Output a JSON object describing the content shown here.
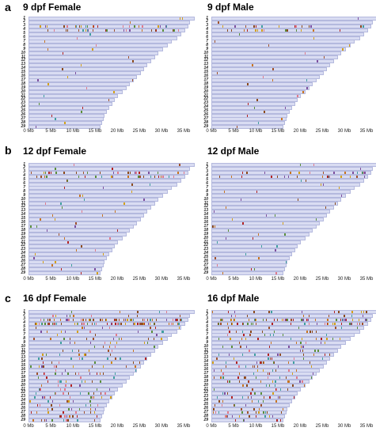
{
  "sections": [
    {
      "letter": "a",
      "panels": [
        {
          "title": "9 dpf Female",
          "sex": "female",
          "density": 0.3
        },
        {
          "title": "9 dpf Male",
          "sex": "male",
          "density": 0.3
        }
      ]
    },
    {
      "letter": "b",
      "panels": [
        {
          "title": "12 dpf Female",
          "sex": "female",
          "density": 0.45
        },
        {
          "title": "12 dpf Male",
          "sex": "male",
          "density": 0.4
        }
      ]
    },
    {
      "letter": "c",
      "panels": [
        {
          "title": "16 dpf Female",
          "sex": "female",
          "density": 2.2
        },
        {
          "title": "16 dpf Male",
          "sex": "male",
          "density": 2.4
        }
      ]
    }
  ],
  "chromosomes": {
    "female": [
      "1",
      "2",
      "3",
      "4",
      "5",
      "6",
      "7",
      "8",
      "9",
      "10",
      "11",
      "12",
      "13",
      "14",
      "15",
      "16",
      "17",
      "18",
      "19",
      "20",
      "21",
      "22",
      "23",
      "24",
      "25",
      "26",
      "27",
      "28",
      "29"
    ],
    "male": [
      "1",
      "2",
      "3",
      "4",
      "5",
      "6",
      "7",
      "8",
      "9",
      "10",
      "11",
      "12",
      "13",
      "14",
      "15",
      "16",
      "17",
      "18",
      "19",
      "20",
      "21",
      "22",
      "23",
      "24",
      "25",
      "26",
      "27",
      "28",
      "29"
    ]
  },
  "chromosome_lengths_mb": [
    37.5,
    36.5,
    36.0,
    35.3,
    34.4,
    33.6,
    32.3,
    31.5,
    30.3,
    29.2,
    28.6,
    27.6,
    26.8,
    26.1,
    25.4,
    24.4,
    23.7,
    22.9,
    22.1,
    21.2,
    20.2,
    19.5,
    18.9,
    18.3,
    17.7,
    17.2,
    16.9,
    16.6,
    16.2
  ],
  "x_axis": {
    "ticks": [
      "0 Mb",
      "5 Mb",
      "10 Mb",
      "15 Mb",
      "20 Mb",
      "25 Mb",
      "30 Mb",
      "35 Mb"
    ],
    "tick_values_mb": [
      0,
      5,
      10,
      15,
      20,
      25,
      30,
      35
    ]
  },
  "colors": {
    "chromosome_fill": "#d9dcf2",
    "chromosome_edge": "#b4b9de",
    "marks": [
      "#8b4a1c",
      "#c8741f",
      "#a0522d",
      "#d4a017",
      "#b22222",
      "#5a8f3a",
      "#3f9f9f",
      "#7d4f9e",
      "#e07a8b"
    ]
  },
  "hotspots": [
    {
      "chromosome": "4",
      "from_mb": 1,
      "to_mb": 34
    },
    {
      "chromosome": "3",
      "from_mb": 1,
      "to_mb": 35
    }
  ]
}
